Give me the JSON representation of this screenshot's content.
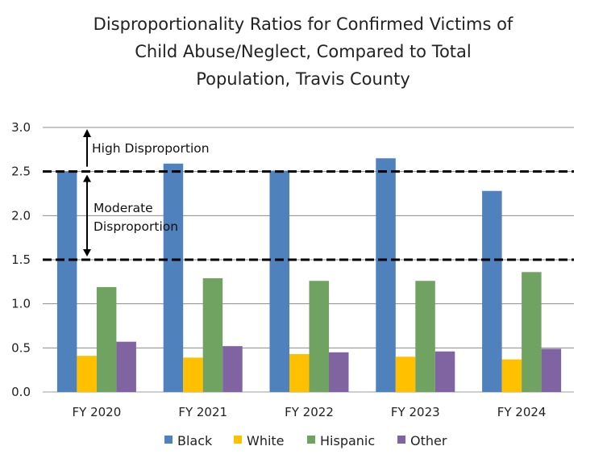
{
  "chart_data": {
    "type": "bar",
    "title": [
      "Disproportionality Ratios for Confirmed Victims of",
      "Child Abuse/Neglect, Compared to Total",
      "Population, Travis County"
    ],
    "xlabel": "",
    "ylabel": "",
    "ylim": [
      0,
      3.0
    ],
    "yticks": [
      "0.0",
      "0.5",
      "1.0",
      "1.5",
      "2.0",
      "2.5",
      "3.0"
    ],
    "grid": true,
    "legend_position": "bottom",
    "categories": [
      "FY 2020",
      "FY 2021",
      "FY 2022",
      "FY 2023",
      "FY 2024"
    ],
    "series": [
      {
        "name": "Black",
        "color": "#4f81bd",
        "values": [
          2.5,
          2.59,
          2.51,
          2.65,
          2.28
        ]
      },
      {
        "name": "White",
        "color": "#ffc000",
        "values": [
          0.41,
          0.39,
          0.43,
          0.4,
          0.37
        ]
      },
      {
        "name": "Hispanic",
        "color": "#70a262",
        "values": [
          1.19,
          1.29,
          1.26,
          1.26,
          1.36
        ]
      },
      {
        "name": "Other",
        "color": "#8064a2",
        "values": [
          0.57,
          0.52,
          0.45,
          0.46,
          0.49
        ]
      }
    ],
    "reference_lines": [
      {
        "value": 2.5,
        "style": "dashed"
      },
      {
        "value": 1.5,
        "style": "dashed"
      }
    ],
    "annotations": [
      {
        "text": "High Disproportion",
        "range": [
          2.5,
          3.0
        ]
      },
      {
        "text": [
          "Moderate",
          "Disproportion"
        ],
        "range": [
          1.5,
          2.5
        ]
      }
    ]
  }
}
